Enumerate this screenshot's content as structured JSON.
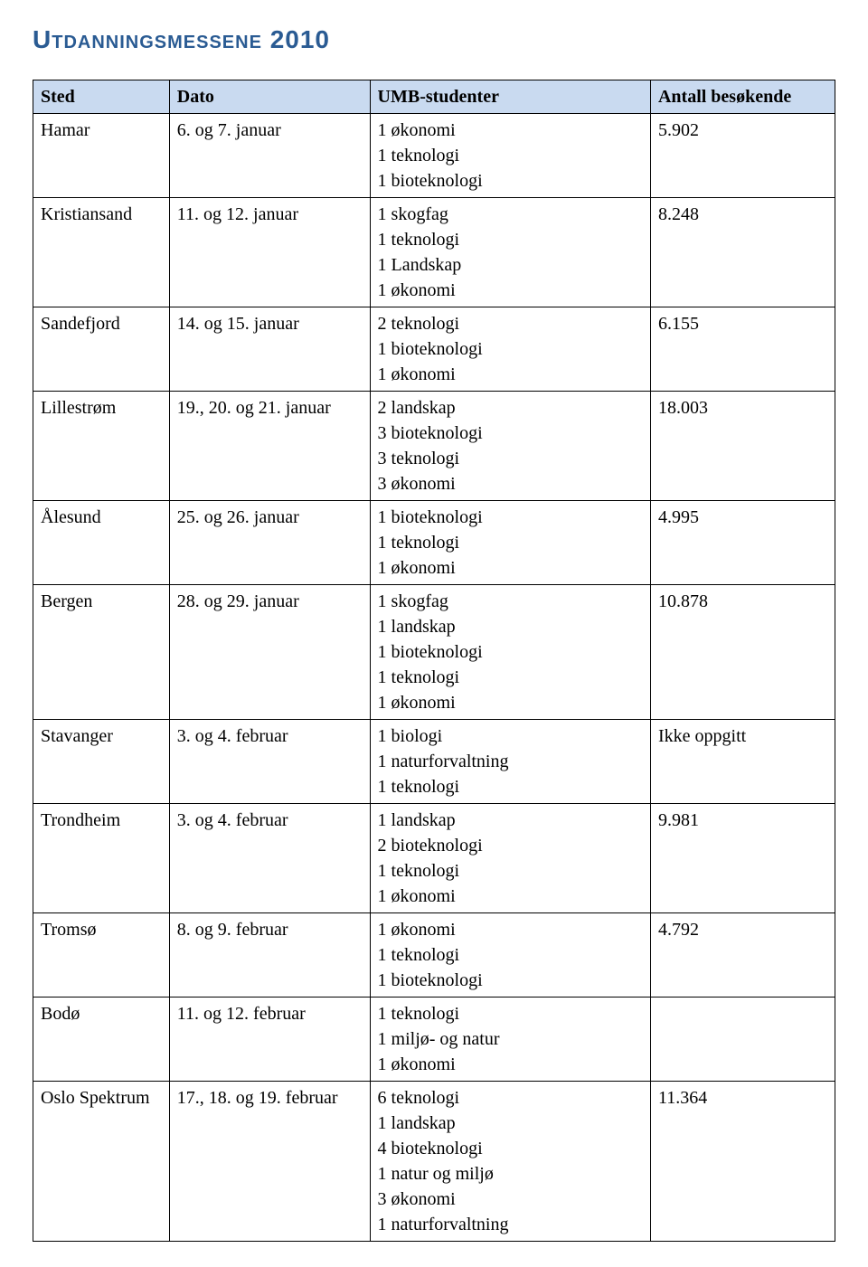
{
  "title": "Utdanningsmessene 2010",
  "colors": {
    "title_color": "#2a5b93",
    "header_bg": "#c9daf0",
    "border": "#000000",
    "text": "#000000",
    "background": "#ffffff"
  },
  "typography": {
    "title_font": "Verdana",
    "title_fontsize": 28,
    "title_weight": 700,
    "title_variant": "small-caps",
    "body_font": "Garamond",
    "cell_fontsize": 20
  },
  "table": {
    "columns": [
      "Sted",
      "Dato",
      "UMB-studenter",
      "Antall besøkende"
    ],
    "col_widths_pct": [
      17,
      25,
      35,
      23
    ],
    "rows": [
      {
        "sted": "Hamar",
        "dato": "6. og 7. januar",
        "studenter": [
          "1 økonomi",
          "1 teknologi",
          "1 bioteknologi"
        ],
        "antall": "5.902"
      },
      {
        "sted": "Kristiansand",
        "dato": "11. og 12. januar",
        "studenter": [
          "1 skogfag",
          "1 teknologi",
          "1 Landskap",
          "1 økonomi"
        ],
        "antall": "8.248"
      },
      {
        "sted": "Sandefjord",
        "dato": "14. og 15. januar",
        "studenter": [
          "2 teknologi",
          "1 bioteknologi",
          "1 økonomi"
        ],
        "antall": "6.155"
      },
      {
        "sted": "Lillestrøm",
        "dato": "19., 20. og 21. januar",
        "studenter": [
          "2 landskap",
          "3 bioteknologi",
          "3 teknologi",
          "3 økonomi"
        ],
        "antall": "18.003"
      },
      {
        "sted": "Ålesund",
        "dato": "25. og 26. januar",
        "studenter": [
          "1 bioteknologi",
          "1 teknologi",
          "1 økonomi"
        ],
        "antall": "4.995"
      },
      {
        "sted": "Bergen",
        "dato": "28. og 29. januar",
        "studenter": [
          "1 skogfag",
          "1 landskap",
          "1 bioteknologi",
          "1 teknologi",
          "1 økonomi"
        ],
        "antall": "10.878"
      },
      {
        "sted": "Stavanger",
        "dato": "3. og 4. februar",
        "studenter": [
          "1 biologi",
          "1 naturforvaltning",
          "1 teknologi"
        ],
        "antall": "Ikke oppgitt"
      },
      {
        "sted": "Trondheim",
        "dato": "3. og 4. februar",
        "studenter": [
          "1 landskap",
          "2 bioteknologi",
          "1 teknologi",
          "1 økonomi"
        ],
        "antall": "9.981"
      },
      {
        "sted": "Tromsø",
        "dato": "8. og 9. februar",
        "studenter": [
          "1 økonomi",
          "1 teknologi",
          "1 bioteknologi"
        ],
        "antall": "4.792"
      },
      {
        "sted": "Bodø",
        "dato": "11. og 12. februar",
        "studenter": [
          "1 teknologi",
          "1 miljø- og natur",
          "1 økonomi"
        ],
        "antall": ""
      },
      {
        "sted": "Oslo Spektrum",
        "dato": "17., 18. og 19. februar",
        "studenter": [
          "6 teknologi",
          "1 landskap",
          "4 bioteknologi",
          "1 natur og miljø",
          "3 økonomi",
          "1 naturforvaltning"
        ],
        "antall": "11.364"
      }
    ]
  }
}
